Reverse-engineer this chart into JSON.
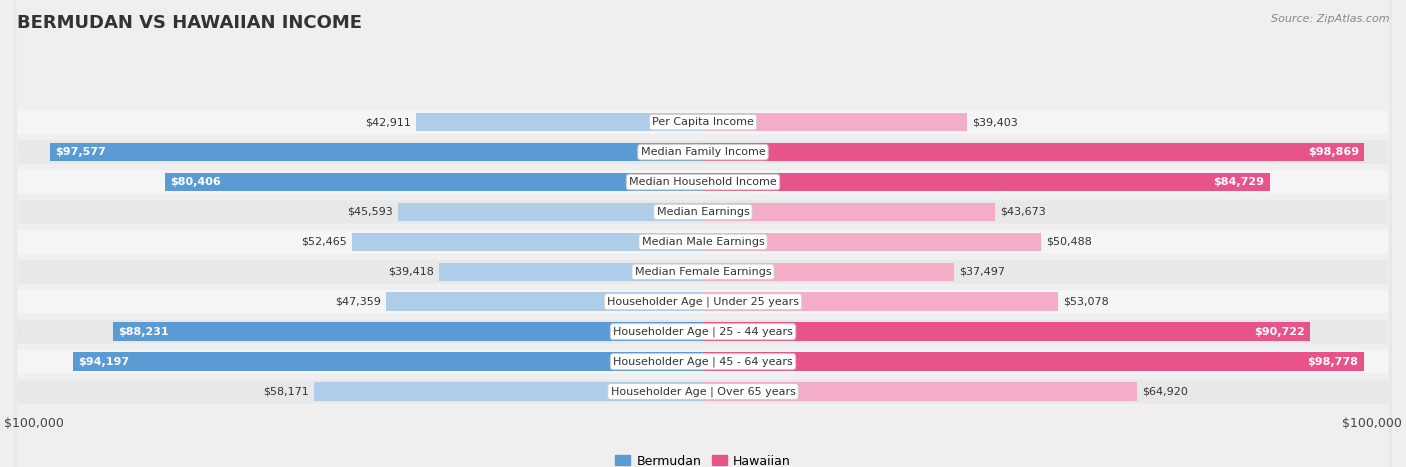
{
  "title": "BERMUDAN VS HAWAIIAN INCOME",
  "source": "Source: ZipAtlas.com",
  "categories": [
    "Per Capita Income",
    "Median Family Income",
    "Median Household Income",
    "Median Earnings",
    "Median Male Earnings",
    "Median Female Earnings",
    "Householder Age | Under 25 years",
    "Householder Age | 25 - 44 years",
    "Householder Age | 45 - 64 years",
    "Householder Age | Over 65 years"
  ],
  "bermudan_values": [
    42911,
    97577,
    80406,
    45593,
    52465,
    39418,
    47359,
    88231,
    94197,
    58171
  ],
  "hawaiian_values": [
    39403,
    98869,
    84729,
    43673,
    50488,
    37497,
    53078,
    90722,
    98778,
    64920
  ],
  "bermudan_labels": [
    "$42,911",
    "$97,577",
    "$80,406",
    "$45,593",
    "$52,465",
    "$39,418",
    "$47,359",
    "$88,231",
    "$94,197",
    "$58,171"
  ],
  "hawaiian_labels": [
    "$39,403",
    "$98,869",
    "$84,729",
    "$43,673",
    "$50,488",
    "$37,497",
    "$53,078",
    "$90,722",
    "$98,778",
    "$64,920"
  ],
  "max_value": 100000,
  "bermudan_color_full": "#5b9bd5",
  "bermudan_color_light": "#aecde8",
  "hawaiian_color_full": "#e8538a",
  "hawaiian_color_light": "#f4adc8",
  "bg_color": "#efefef",
  "row_bg_odd": "#e8e8e8",
  "row_bg_even": "#f5f5f5",
  "threshold": 75000,
  "title_fontsize": 13,
  "label_fontsize": 8,
  "tick_fontsize": 9,
  "legend_fontsize": 9
}
